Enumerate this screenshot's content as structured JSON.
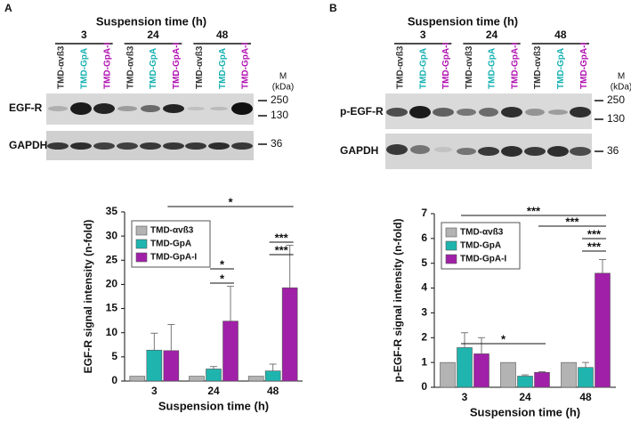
{
  "blots": [
    {
      "panel": "A",
      "title": "Suspension time (h)",
      "groups": [
        "3",
        "24",
        "48"
      ],
      "lanes": [
        "TMD-αvß3",
        "TMD-GpA",
        "TMD-GpA-I",
        "TMD-αvß3",
        "TMD-GpA",
        "TMD-GpA-I",
        "TMD-αvß3",
        "TMD-GpA",
        "TMD-GpA-I"
      ],
      "lane_colors": [
        "#333333",
        "#14b0b0",
        "#b010b0",
        "#333333",
        "#14b0b0",
        "#b010b0",
        "#333333",
        "#14b0b0",
        "#b010b0"
      ],
      "rows": [
        "EGF-R",
        "GAPDH"
      ],
      "marker_title": [
        "M",
        "(kDa)"
      ],
      "markers": [
        "250",
        "130",
        "36"
      ]
    },
    {
      "panel": "B",
      "title": "Suspension time (h)",
      "groups": [
        "3",
        "24",
        "48"
      ],
      "lanes": [
        "TMD-αvß3",
        "TMD-GpA",
        "TMD-GpA-I",
        "TMD-αvß3",
        "TMD-GpA",
        "TMD-GpA-I",
        "TMD-αvß3",
        "TMD-GpA",
        "TMD-GpA-I"
      ],
      "lane_colors": [
        "#333333",
        "#14b0b0",
        "#b010b0",
        "#333333",
        "#14b0b0",
        "#b010b0",
        "#333333",
        "#14b0b0",
        "#b010b0"
      ],
      "rows": [
        "p-EGF-R",
        "GAPDH"
      ],
      "marker_title": [
        "M",
        "(kDa)"
      ],
      "markers": [
        "250",
        "130",
        "36"
      ]
    }
  ],
  "chart_data": [
    {
      "type": "bar",
      "x_label": "Suspension time (h)",
      "y_label": "EGF-R signal intensity (n-fold)",
      "categories": [
        "3",
        "24",
        "48"
      ],
      "series": [
        {
          "name": "TMD-αvß3",
          "color": "#b3b3b3",
          "values": [
            1,
            1,
            1
          ],
          "errors": [
            0,
            0,
            0
          ]
        },
        {
          "name": "TMD-GpA",
          "color": "#1fb5ae",
          "values": [
            6.4,
            2.5,
            2.1
          ],
          "errors": [
            3.5,
            0.5,
            1.4
          ]
        },
        {
          "name": "TMD-GpA-I",
          "color": "#a020a8",
          "values": [
            6.3,
            12.4,
            19.3
          ],
          "errors": [
            5.4,
            7.2,
            8.8
          ]
        }
      ],
      "ylim": [
        0,
        35
      ],
      "yticks": [
        0,
        5,
        10,
        15,
        20,
        25,
        30,
        35
      ],
      "grid": false,
      "legend": "top-left",
      "annotations": [
        "*",
        "***",
        "***",
        "*",
        "*"
      ]
    },
    {
      "type": "bar",
      "x_label": "Suspension time (h)",
      "y_label": "p-EGF-R signal intensity (n-fold)",
      "categories": [
        "3",
        "24",
        "48"
      ],
      "series": [
        {
          "name": "TMD-αvß3",
          "color": "#b3b3b3",
          "values": [
            1,
            1,
            1
          ],
          "errors": [
            0,
            0,
            0
          ]
        },
        {
          "name": "TMD-GpA",
          "color": "#1fb5ae",
          "values": [
            1.6,
            0.45,
            0.8
          ],
          "errors": [
            0.6,
            0.05,
            0.2
          ]
        },
        {
          "name": "TMD-GpA-I",
          "color": "#a020a8",
          "values": [
            1.35,
            0.6,
            4.6
          ],
          "errors": [
            0.65,
            0.03,
            0.55
          ]
        }
      ],
      "ylim": [
        0,
        7
      ],
      "yticks": [
        0,
        1,
        2,
        3,
        4,
        5,
        6,
        7
      ],
      "grid": false,
      "legend": "top-left",
      "annotations": [
        "***",
        "***",
        "***",
        "***",
        "*"
      ]
    }
  ]
}
